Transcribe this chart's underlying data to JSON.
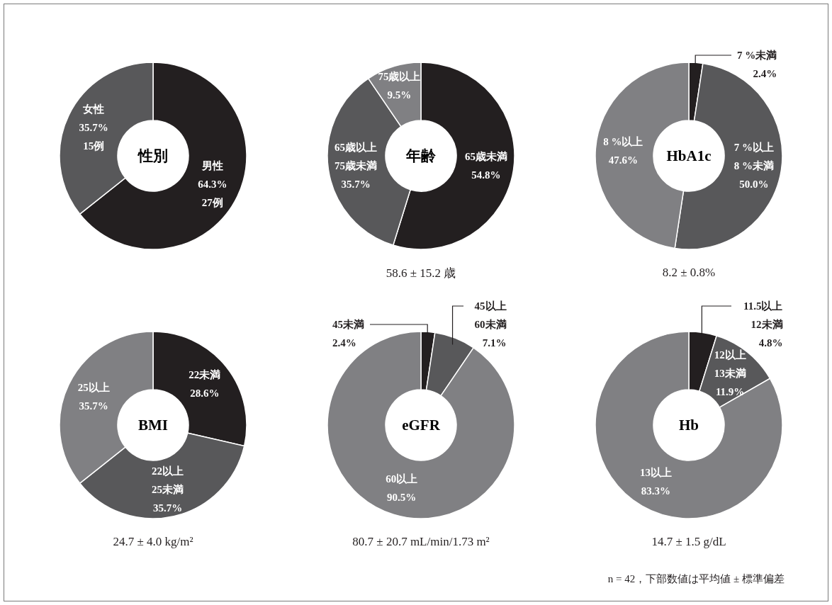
{
  "chart_data": [
    {
      "type": "donut",
      "title": "性別",
      "categories": [
        "男性",
        "女性"
      ],
      "values": [
        64.3,
        35.7
      ],
      "colors": [
        "#231f20",
        "#58585a"
      ],
      "value_labels": [
        "64.3% 27例",
        "35.7% 15例"
      ]
    },
    {
      "type": "donut",
      "title": "年齢",
      "categories": [
        "65歳未満",
        "65歳以上75歳未満",
        "75歳以上"
      ],
      "values": [
        54.8,
        35.7,
        9.5
      ],
      "colors": [
        "#231f20",
        "#58585a",
        "#808083"
      ],
      "value_labels": [
        "54.8%",
        "35.7%",
        "9.5%"
      ],
      "annotations": [
        "58.6 ± 15.2 歳"
      ]
    },
    {
      "type": "donut",
      "title": "HbA1c",
      "categories": [
        "7 %未満",
        "7 %以上8 %未満",
        "8 %以上"
      ],
      "values": [
        2.4,
        50.0,
        47.6
      ],
      "colors": [
        "#231f20",
        "#58585a",
        "#808083"
      ],
      "value_labels": [
        "2.4%",
        "50.0%",
        "47.6%"
      ],
      "annotations": [
        "8.2 ± 0.8%"
      ]
    },
    {
      "type": "donut",
      "title": "BMI",
      "categories": [
        "22未満",
        "22以上25未満",
        "25以上"
      ],
      "values": [
        28.6,
        35.7,
        35.7
      ],
      "colors": [
        "#231f20",
        "#58585a",
        "#808083"
      ],
      "value_labels": [
        "28.6%",
        "35.7%",
        "35.7%"
      ],
      "annotations": [
        "24.7 ± 4.0 kg/m²"
      ]
    },
    {
      "type": "donut",
      "title": "eGFR",
      "categories": [
        "45未満",
        "45以上60未満",
        "60以上"
      ],
      "values": [
        2.4,
        7.1,
        90.5
      ],
      "colors": [
        "#231f20",
        "#58585a",
        "#808083"
      ],
      "value_labels": [
        "2.4%",
        "7.1%",
        "90.5%"
      ],
      "annotations": [
        "80.7 ± 20.7 mL/min/1.73 m²"
      ]
    },
    {
      "type": "donut",
      "title": "Hb",
      "categories": [
        "11.5以上12未満",
        "12以上13未満",
        "13以上"
      ],
      "values": [
        4.8,
        11.9,
        83.3
      ],
      "colors": [
        "#231f20",
        "#58585a",
        "#808083"
      ],
      "value_labels": [
        "4.8%",
        "11.9%",
        "83.3%"
      ],
      "annotations": [
        "14.7 ± 1.5 g/dL",
        "n = 42，下部数値は平均値 ± 標準偏差"
      ]
    }
  ]
}
